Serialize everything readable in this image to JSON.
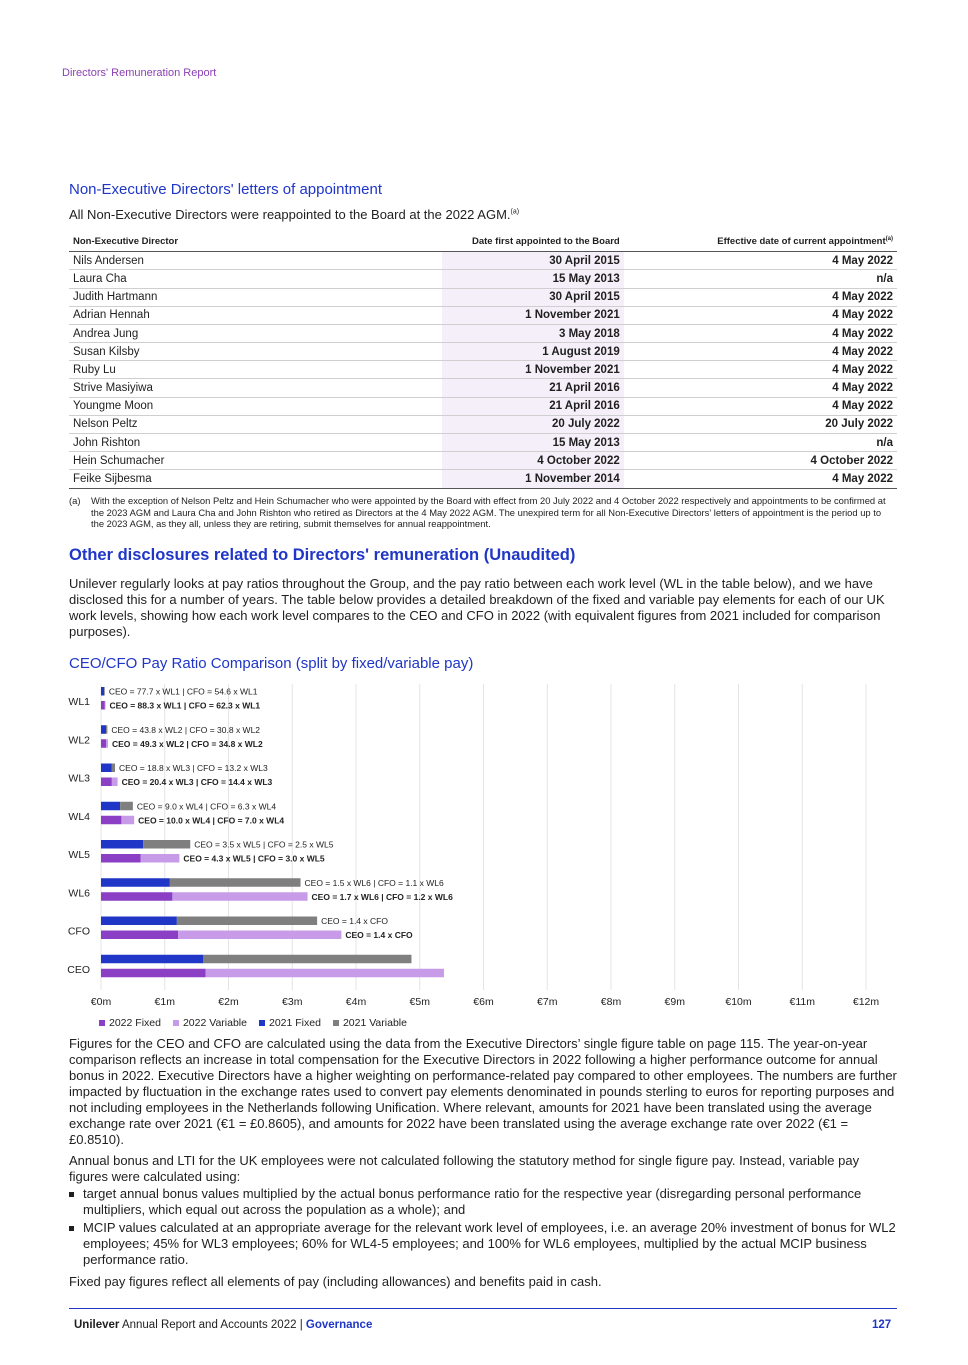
{
  "header": {
    "running_title": "Directors' Remuneration Report"
  },
  "letters": {
    "title": "Non-Executive Directors' letters of appointment",
    "intro": "All Non-Executive Directors were reappointed to the Board at the 2022 AGM.",
    "intro_note": "(a)",
    "table": {
      "headers": [
        "Non-Executive Director",
        "Date first appointed to the Board",
        "Effective date of current appointment"
      ],
      "header_note": "(a)",
      "rows": [
        [
          "Nils Andersen",
          "30 April 2015",
          "4 May 2022"
        ],
        [
          "Laura Cha",
          "15 May 2013",
          "n/a"
        ],
        [
          "Judith Hartmann",
          "30 April 2015",
          "4 May 2022"
        ],
        [
          "Adrian Hennah",
          "1 November 2021",
          "4 May 2022"
        ],
        [
          "Andrea Jung",
          "3 May 2018",
          "4 May 2022"
        ],
        [
          "Susan Kilsby",
          "1 August 2019",
          "4 May 2022"
        ],
        [
          "Ruby Lu",
          "1 November 2021",
          "4 May 2022"
        ],
        [
          "Strive Masiyiwa",
          "21 April 2016",
          "4 May 2022"
        ],
        [
          "Youngme Moon",
          "21 April 2016",
          "4 May 2022"
        ],
        [
          "Nelson Peltz",
          "20 July 2022",
          "20 July 2022"
        ],
        [
          "John Rishton",
          "15 May 2013",
          "n/a"
        ],
        [
          "Hein Schumacher",
          "4 October 2022",
          "4 October 2022"
        ],
        [
          "Feike Sijbesma",
          "1 November 2014",
          "4 May 2022"
        ]
      ]
    },
    "footnote_mark": "(a)",
    "footnote": "With the exception of Nelson Peltz and Hein Schumacher who were appointed by the Board with effect from 20 July 2022 and 4 October 2022 respectively and appointments to be confirmed at the 2023 AGM and Laura Cha and John Rishton who retired as Directors at the 4 May 2022 AGM. The unexpired term for all Non-Executive Directors' letters of appointment is the period up to the 2023 AGM, as they all, unless they are retiring, submit themselves for annual reappointment."
  },
  "disclosures": {
    "title": "Other disclosures related to Directors' remuneration (Unaudited)",
    "para1": "Unilever regularly looks at pay ratios throughout the Group, and the pay ratio between each work level (WL in the table below), and we have disclosed this for a number of years. The table below provides a detailed breakdown of the fixed and variable pay elements for each of our UK work levels, showing how each work level compares to the CEO and CFO in 2022 (with equivalent figures from 2021 included for comparison purposes).",
    "chart_title": "CEO/CFO Pay Ratio Comparison (split by fixed/variable pay)",
    "para2": "Figures for the CEO and CFO are calculated using the data from the Executive Directors’ single figure table on page 115. The year-on-year comparison reflects an increase in total compensation for the Executive Directors in 2022 following a higher performance outcome for annual bonus in 2022. Executive Directors have a higher weighting on performance-related pay compared to other employees. The numbers are further impacted by fluctuation in the exchange rates used to convert pay elements denominated in pounds sterling to euros for reporting purposes and not including employees in the Netherlands following Unification. Where relevant, amounts for 2021 have been translated using the average exchange rate over 2021 (€1 = £0.8605), and amounts for 2022 have been translated using the average exchange rate over 2022 (€1 = £0.8510).",
    "para3": "Annual bonus and LTI for the UK employees were not calculated following the statutory method for single figure pay. Instead, variable pay figures were calculated using:",
    "bullets": [
      "target annual bonus values multiplied by the actual bonus performance ratio for the respective year (disregarding personal performance multipliers, which equal out across the population as a whole); and",
      "MCIP values calculated at an appropriate average for the relevant work level of employees, i.e. an average 20% investment of bonus for WL2 employees; 45% for WL3 employees; 60% for WL4-5 employees; and 100% for WL6 employees, multiplied by the actual MCIP business performance ratio."
    ],
    "para4": "Fixed pay figures reflect all elements of pay (including allowances) and benefits paid in cash."
  },
  "chart_data": {
    "type": "bar",
    "orientation": "horizontal",
    "stacked": true,
    "categories": [
      "WL1",
      "WL2",
      "WL3",
      "WL4",
      "WL5",
      "WL6",
      "CFO",
      "CEO"
    ],
    "x_ticks": [
      "€0m",
      "€1m",
      "€2m",
      "€3m",
      "€4m",
      "€5m",
      "€6m",
      "€7m",
      "€8m",
      "€9m",
      "€10m",
      "€11m",
      "€12m"
    ],
    "xlim": [
      0,
      12
    ],
    "grid": true,
    "legend_position": "bottom-left",
    "colors": {
      "fixed_2022": "#8a3fc4",
      "variable_2022": "#c89be8",
      "fixed_2021": "#1f36c7",
      "variable_2021": "#7f7f7f"
    },
    "series": [
      {
        "name": "2022 Fixed",
        "values": [
          0.06,
          0.08,
          0.17,
          0.32,
          0.62,
          1.12,
          1.21,
          1.64
        ]
      },
      {
        "name": "2022 Variable",
        "values": [
          0.01,
          0.03,
          0.09,
          0.2,
          0.61,
          2.12,
          2.56,
          3.74
        ]
      },
      {
        "name": "2021 Fixed",
        "values": [
          0.05,
          0.08,
          0.17,
          0.3,
          0.66,
          1.08,
          1.19,
          1.6
        ]
      },
      {
        "name": "2021 Variable",
        "values": [
          0.01,
          0.02,
          0.05,
          0.2,
          0.74,
          2.05,
          2.2,
          3.27
        ]
      }
    ],
    "annotations_2021": [
      "CEO = 77.7 x WL1 | CFO = 54.6 x WL1",
      "CEO = 43.8 x WL2 | CFO = 30.8 x WL2",
      "CEO = 18.8 x WL3 | CFO = 13.2 x WL3",
      "CEO = 9.0 x WL4 | CFO = 6.3 x WL4",
      "CEO = 3.5 x WL5 | CFO = 2.5 x WL5",
      "CEO = 1.5 x WL6 | CFO = 1.1 x WL6",
      "CEO = 1.4 x CFO",
      ""
    ],
    "annotations_2022": [
      "CEO = 88.3 x WL1 | CFO = 62.3 x WL1",
      "CEO = 49.3 x WL2 | CFO = 34.8 x WL2",
      "CEO = 20.4 x WL3 | CFO = 14.4 x WL3",
      "CEO = 10.0 x WL4 | CFO = 7.0 x WL4",
      "CEO = 4.3 x WL5 | CFO = 3.0 x WL5",
      "CEO = 1.7 x WL6 | CFO = 1.2 x WL6",
      "CEO = 1.4 x  CFO",
      ""
    ]
  },
  "footer": {
    "brand": "Unilever",
    "report": " Annual Report and Accounts 2022 | ",
    "section": "Governance",
    "page": "127"
  }
}
